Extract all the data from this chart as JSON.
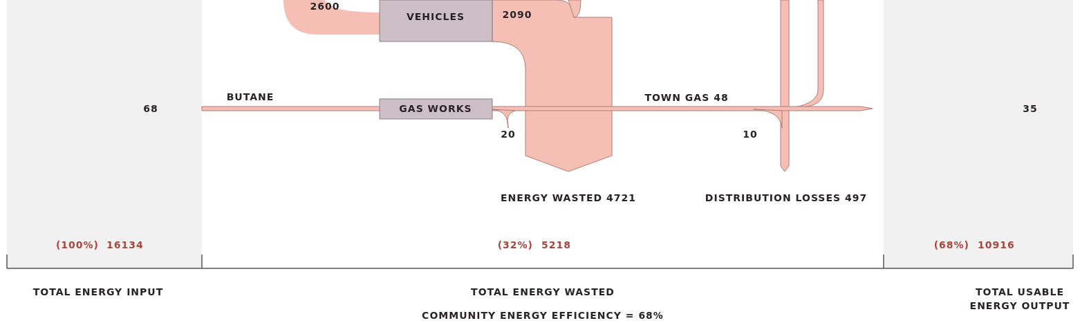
{
  "chart_data": {
    "type": "other",
    "categories": [
      "TOTAL ENERGY INPUT",
      "TOTAL ENERGY WASTED",
      "TOTAL USABLE ENERGY OUTPUT"
    ],
    "values": [
      16134,
      5218,
      10916
    ],
    "data_labels": true,
    "annotations": [
      "2600",
      "VEHICLES",
      "2090",
      "BUTANE",
      "68",
      "GAS WORKS",
      "TOWN GAS 48",
      "20",
      "10",
      "35",
      "ENERGY WASTED 4721",
      "DISTRIBUTION LOSSES 497",
      "COMMUNITY ENERGY EFFICIENCY = 68%",
      "(100%)",
      "(32%)",
      "(68%)"
    ]
  }
}
